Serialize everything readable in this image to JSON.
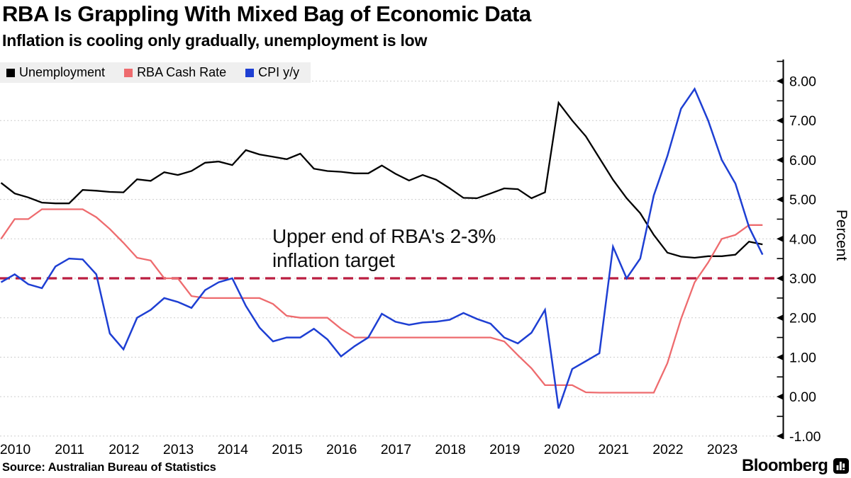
{
  "header": {
    "title": "RBA Is Grappling With Mixed Bag of Economic Data",
    "subtitle": "Inflation is cooling only gradually, unemployment is low"
  },
  "legend": {
    "items": [
      {
        "label": "Unemployment",
        "color": "#000000"
      },
      {
        "label": "RBA Cash Rate",
        "color": "#ee6b6e"
      },
      {
        "label": "CPI y/y",
        "color": "#1e3fd3"
      }
    ]
  },
  "annotation": {
    "line1": "Upper end of RBA's 2-3%",
    "line2": "inflation target"
  },
  "footer": {
    "source": "Source: Australian Bureau of Statistics",
    "brand": "Bloomberg"
  },
  "chart_data": {
    "type": "line",
    "title": "RBA Is Grappling With Mixed Bag of Economic Data",
    "subtitle": "Inflation is cooling only gradually, unemployment is low",
    "ylabel": "Percent",
    "ylim": [
      -1.0,
      8.5
    ],
    "grid": "horizontal-dashed",
    "legend_position": "top-left",
    "x_start_year": 2010,
    "x_step_years": 0.25,
    "categories_years": [
      "2010",
      "2011",
      "2012",
      "2013",
      "2014",
      "2015",
      "2016",
      "2017",
      "2018",
      "2019",
      "2020",
      "2021",
      "2022",
      "2023"
    ],
    "yticks_major": [
      8,
      7,
      6,
      5,
      4,
      3,
      2,
      1,
      0,
      -1
    ],
    "ytick_labels": [
      "8.00",
      "7.00",
      "6.00",
      "5.00",
      "4.00",
      "3.00",
      "2.00",
      "1.00",
      "0.00",
      "-1.00"
    ],
    "target_line": {
      "value": 3.0,
      "color": "#bb1e41",
      "label": "Upper end of RBA's 2-3% inflation target"
    },
    "series": [
      {
        "name": "Unemployment",
        "color": "#000000",
        "width": 2.3,
        "values": [
          5.42,
          5.15,
          5.05,
          4.92,
          4.9,
          4.9,
          5.24,
          5.22,
          5.19,
          5.18,
          5.51,
          5.47,
          5.69,
          5.62,
          5.72,
          5.93,
          5.96,
          5.87,
          6.25,
          6.14,
          6.08,
          6.02,
          6.16,
          5.78,
          5.72,
          5.7,
          5.66,
          5.66,
          5.86,
          5.65,
          5.48,
          5.62,
          5.5,
          5.28,
          5.04,
          5.03,
          5.15,
          5.28,
          5.26,
          5.03,
          5.18,
          7.45,
          7.0,
          6.6,
          6.05,
          5.5,
          5.03,
          4.65,
          4.1,
          3.65,
          3.55,
          3.52,
          3.56,
          3.56,
          3.6,
          3.93,
          3.86
        ]
      },
      {
        "name": "RBA Cash Rate",
        "color": "#ee6b6e",
        "width": 2.3,
        "values": [
          4.0,
          4.5,
          4.5,
          4.75,
          4.75,
          4.75,
          4.75,
          4.55,
          4.25,
          3.9,
          3.52,
          3.45,
          3.0,
          3.0,
          2.55,
          2.5,
          2.5,
          2.5,
          2.5,
          2.5,
          2.35,
          2.05,
          2.0,
          2.0,
          2.0,
          1.72,
          1.5,
          1.5,
          1.5,
          1.5,
          1.5,
          1.5,
          1.5,
          1.5,
          1.5,
          1.5,
          1.5,
          1.4,
          1.05,
          0.72,
          0.29,
          0.29,
          0.29,
          0.11,
          0.1,
          0.1,
          0.1,
          0.1,
          0.1,
          0.85,
          1.97,
          2.9,
          3.4,
          4.0,
          4.1,
          4.35,
          4.35
        ]
      },
      {
        "name": "CPI y/y",
        "color": "#1e3fd3",
        "width": 2.5,
        "values": [
          2.9,
          3.1,
          2.85,
          2.75,
          3.3,
          3.5,
          3.48,
          3.1,
          1.6,
          1.2,
          2.0,
          2.2,
          2.5,
          2.4,
          2.25,
          2.7,
          2.9,
          3.0,
          2.3,
          1.75,
          1.4,
          1.5,
          1.5,
          1.72,
          1.45,
          1.02,
          1.28,
          1.5,
          2.1,
          1.9,
          1.82,
          1.88,
          1.9,
          1.95,
          2.12,
          1.97,
          1.85,
          1.5,
          1.35,
          1.62,
          2.2,
          -0.3,
          0.7,
          0.9,
          1.1,
          3.8,
          3.0,
          3.5,
          5.1,
          6.1,
          7.3,
          7.8,
          7.0,
          6.0,
          5.4,
          4.3,
          3.6
        ]
      }
    ]
  }
}
